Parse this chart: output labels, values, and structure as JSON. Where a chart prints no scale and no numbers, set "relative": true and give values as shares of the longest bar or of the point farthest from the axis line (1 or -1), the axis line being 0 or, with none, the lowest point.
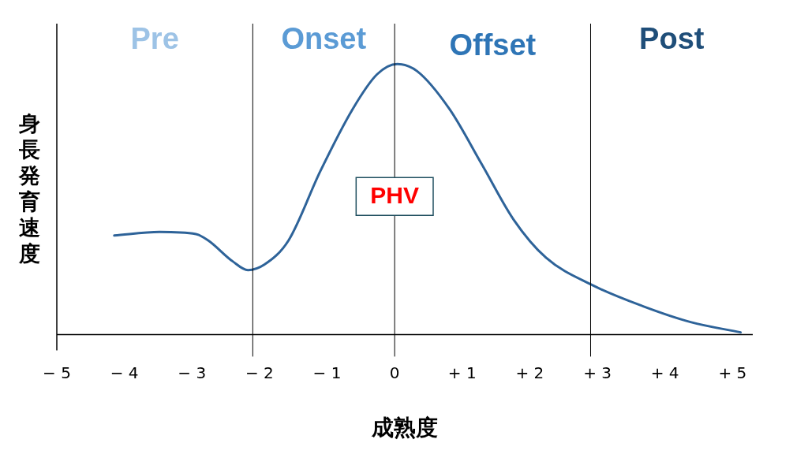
{
  "chart_data": {
    "type": "line",
    "relative": true,
    "xlabel": "成熟度",
    "ylabel": "身長発育速度",
    "xlim": [
      -5,
      5.3
    ],
    "xticks": [
      {
        "value": -5,
        "label": "− 5"
      },
      {
        "value": -4,
        "label": "− 4"
      },
      {
        "value": -3,
        "label": "− 3"
      },
      {
        "value": -2,
        "label": "− 2"
      },
      {
        "value": -1,
        "label": "− 1"
      },
      {
        "value": 0,
        "label": "0"
      },
      {
        "value": 1,
        "label": "+ 1"
      },
      {
        "value": 2,
        "label": "+ 2"
      },
      {
        "value": 3,
        "label": "+ 3"
      },
      {
        "value": 4,
        "label": "+ 4"
      },
      {
        "value": 5,
        "label": "+ 5"
      }
    ],
    "series": [
      {
        "color": "#2e6399",
        "x": [
          -4.15,
          -3.48,
          -2.94,
          -2.76,
          -2.4,
          -2.17,
          -1.93,
          -1.57,
          -1.1,
          -0.62,
          -0.26,
          0.04,
          0.33,
          0.81,
          1.29,
          1.76,
          2.24,
          2.93,
          3.67,
          4.38,
          5.12
        ],
        "values": [
          0.366,
          0.379,
          0.371,
          0.348,
          0.271,
          0.238,
          0.258,
          0.348,
          0.604,
          0.834,
          0.962,
          1,
          0.974,
          0.834,
          0.629,
          0.425,
          0.284,
          0.182,
          0.105,
          0.046,
          0.008
        ]
      }
    ],
    "ref_lines": [
      {
        "axis": "x",
        "value": -2.1,
        "color": "#000000"
      },
      {
        "axis": "x",
        "value": 0,
        "color": "#000000"
      },
      {
        "axis": "x",
        "value": 2.9,
        "color": "#000000"
      }
    ],
    "annotations": [
      "Pre",
      "Onset",
      "Offset",
      "Post",
      {
        "text": "PHV",
        "x": 0,
        "y": 0.51
      }
    ],
    "grid": false,
    "legend": false,
    "marker": "none",
    "line_style": "solid"
  }
}
